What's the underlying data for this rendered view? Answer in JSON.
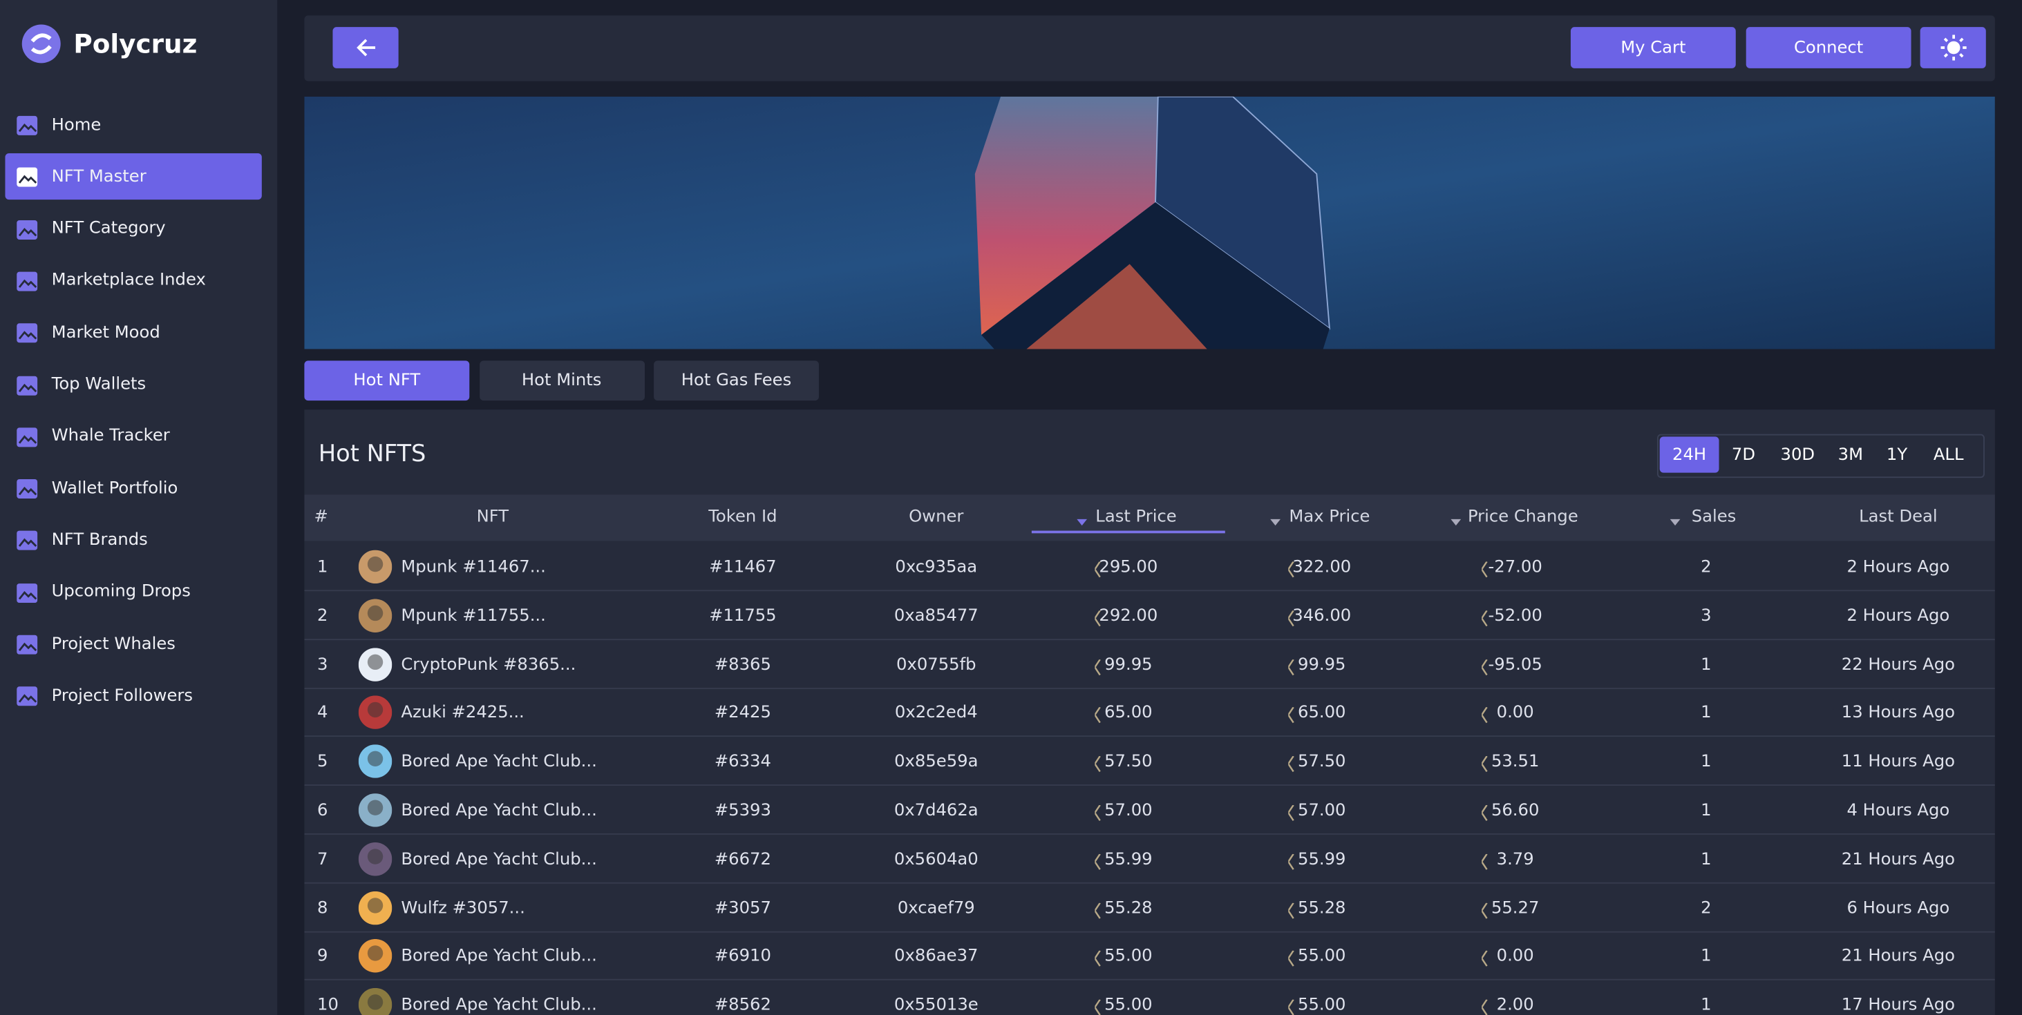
{
  "brand": "Polycruz",
  "nav": {
    "items": [
      "Home",
      "NFT Master",
      "NFT Category",
      "Marketplace Index",
      "Market Mood",
      "Top Wallets",
      "Whale Tracker",
      "Wallet Portfolio",
      "NFT Brands",
      "Upcoming Drops",
      "Project Whales",
      "Project Followers"
    ],
    "active": 1
  },
  "topbar": {
    "buttons": [
      "My Cart",
      "Connect"
    ]
  },
  "tabs": {
    "items": [
      "Hot NFT",
      "Hot Mints",
      "Hot Gas Fees"
    ],
    "active": 0
  },
  "panel": {
    "title": "Hot NFTS",
    "periods": [
      "24H",
      "7D",
      "30D",
      "3M",
      "1Y",
      "ALL"
    ],
    "active_period": 0
  },
  "table": {
    "columns": [
      "#",
      "NFT",
      "Token Id",
      "Owner",
      "Last Price",
      "Max Price",
      "Price Change",
      "Sales",
      "Last Deal"
    ],
    "sorted_column": 4,
    "rows": [
      [
        "1",
        "Mpunk #11467...",
        "#11467",
        "0xc935aa",
        "295.00",
        "322.00",
        "-27.00",
        "2",
        "2 Hours Ago"
      ],
      [
        "2",
        "Mpunk #11755...",
        "#11755",
        "0xa85477",
        "292.00",
        "346.00",
        "-52.00",
        "3",
        "2 Hours Ago"
      ],
      [
        "3",
        "CryptoPunk #8365...",
        "#8365",
        "0x0755fb",
        "99.95",
        "99.95",
        "-95.05",
        "1",
        "22 Hours Ago"
      ],
      [
        "4",
        "Azuki #2425...",
        "#2425",
        "0x2c2ed4",
        "65.00",
        "65.00",
        "0.00",
        "1",
        "13 Hours Ago"
      ],
      [
        "5",
        "Bored Ape Yacht Club...",
        "#6334",
        "0x85e59a",
        "57.50",
        "57.50",
        "53.51",
        "1",
        "11 Hours Ago"
      ],
      [
        "6",
        "Bored Ape Yacht Club...",
        "#5393",
        "0x7d462a",
        "57.00",
        "57.00",
        "56.60",
        "1",
        "4 Hours Ago"
      ],
      [
        "7",
        "Bored Ape Yacht Club...",
        "#6672",
        "0x5604a0",
        "55.99",
        "55.99",
        "3.79",
        "1",
        "21 Hours Ago"
      ],
      [
        "8",
        "Wulfz #3057...",
        "#3057",
        "0xcaef79",
        "55.28",
        "55.28",
        "55.27",
        "2",
        "6 Hours Ago"
      ],
      [
        "9",
        "Bored Ape Yacht Club...",
        "#6910",
        "0x86ae37",
        "55.00",
        "55.00",
        "0.00",
        "1",
        "21 Hours Ago"
      ],
      [
        "10",
        "Bored Ape Yacht Club...",
        "#8562",
        "0x55013e",
        "55.00",
        "55.00",
        "2.00",
        "1",
        "17 Hours Ago"
      ]
    ]
  }
}
